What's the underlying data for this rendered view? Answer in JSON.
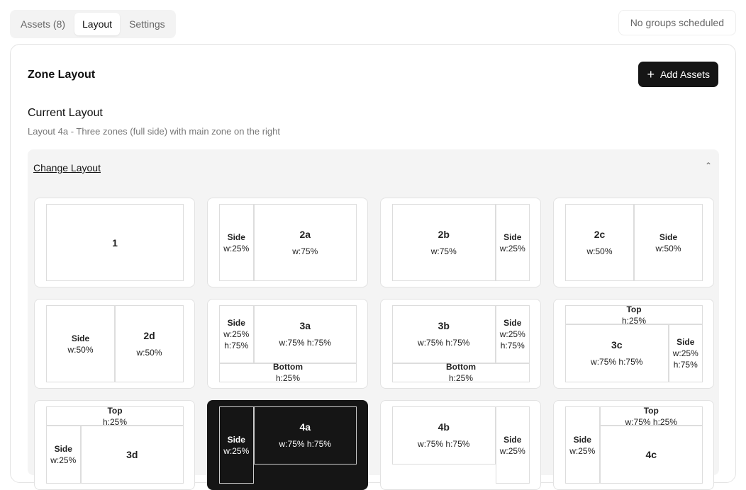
{
  "tabs": [
    {
      "label": "Assets (8)"
    },
    {
      "label": "Layout",
      "active": true
    },
    {
      "label": "Settings"
    }
  ],
  "status": "No groups scheduled",
  "panel": {
    "title": "Zone Layout",
    "add_label": "Add Assets",
    "add_icon": "plus-icon",
    "current_heading": "Current Layout",
    "current_desc": "Layout 4a - Three zones (full side) with main zone on the right",
    "change_label": "Change Layout",
    "chevron_icon": "chevron-up-icon"
  },
  "selected": "4a",
  "layouts": [
    {
      "id": "1",
      "zones": [
        {
          "name": "1",
          "lines": []
        }
      ]
    },
    {
      "id": "2a",
      "zones": [
        {
          "name": "Side",
          "lines": [
            "w:25%"
          ]
        },
        {
          "name": "2a",
          "lines": [
            "w:75%"
          ]
        }
      ]
    },
    {
      "id": "2b",
      "zones": [
        {
          "name": "2b",
          "lines": [
            "w:75%"
          ]
        },
        {
          "name": "Side",
          "lines": [
            "w:25%"
          ]
        }
      ]
    },
    {
      "id": "2c",
      "zones": [
        {
          "name": "2c",
          "lines": [
            "w:50%"
          ]
        },
        {
          "name": "Side",
          "lines": [
            "w:50%"
          ]
        }
      ]
    },
    {
      "id": "2d",
      "zones": [
        {
          "name": "Side",
          "lines": [
            "w:50%"
          ]
        },
        {
          "name": "2d",
          "lines": [
            "w:50%"
          ]
        }
      ]
    },
    {
      "id": "3a",
      "zones": [
        {
          "name": "Side",
          "lines": [
            "w:25%",
            "h:75%"
          ]
        },
        {
          "name": "3a",
          "lines": [
            "w:75% h:75%"
          ]
        },
        {
          "name": "Bottom",
          "lines": [
            "h:25%"
          ]
        }
      ]
    },
    {
      "id": "3b",
      "zones": [
        {
          "name": "3b",
          "lines": [
            "w:75% h:75%"
          ]
        },
        {
          "name": "Side",
          "lines": [
            "w:25%",
            "h:75%"
          ]
        },
        {
          "name": "Bottom",
          "lines": [
            "h:25%"
          ]
        }
      ]
    },
    {
      "id": "3c",
      "zones": [
        {
          "name": "Top",
          "lines": [
            "h:25%"
          ]
        },
        {
          "name": "3c",
          "lines": [
            "w:75% h:75%"
          ]
        },
        {
          "name": "Side",
          "lines": [
            "w:25%",
            "h:75%"
          ]
        }
      ]
    },
    {
      "id": "3d",
      "zones": [
        {
          "name": "Top",
          "lines": [
            "h:25%"
          ]
        },
        {
          "name": "Side",
          "lines": [
            "w:25%"
          ]
        },
        {
          "name": "3d",
          "lines": []
        }
      ]
    },
    {
      "id": "4a",
      "zones": [
        {
          "name": "Side",
          "lines": [
            "w:25%"
          ]
        },
        {
          "name": "4a",
          "lines": [
            "w:75% h:75%"
          ]
        }
      ]
    },
    {
      "id": "4b",
      "zones": [
        {
          "name": "4b",
          "lines": [
            "w:75% h:75%"
          ]
        },
        {
          "name": "Side",
          "lines": [
            "w:25%"
          ]
        }
      ]
    },
    {
      "id": "4c",
      "zones": [
        {
          "name": "Side",
          "lines": [
            "w:25%"
          ]
        },
        {
          "name": "Top",
          "lines": [
            "w:75% h:25%"
          ]
        },
        {
          "name": "4c",
          "lines": []
        }
      ]
    }
  ]
}
